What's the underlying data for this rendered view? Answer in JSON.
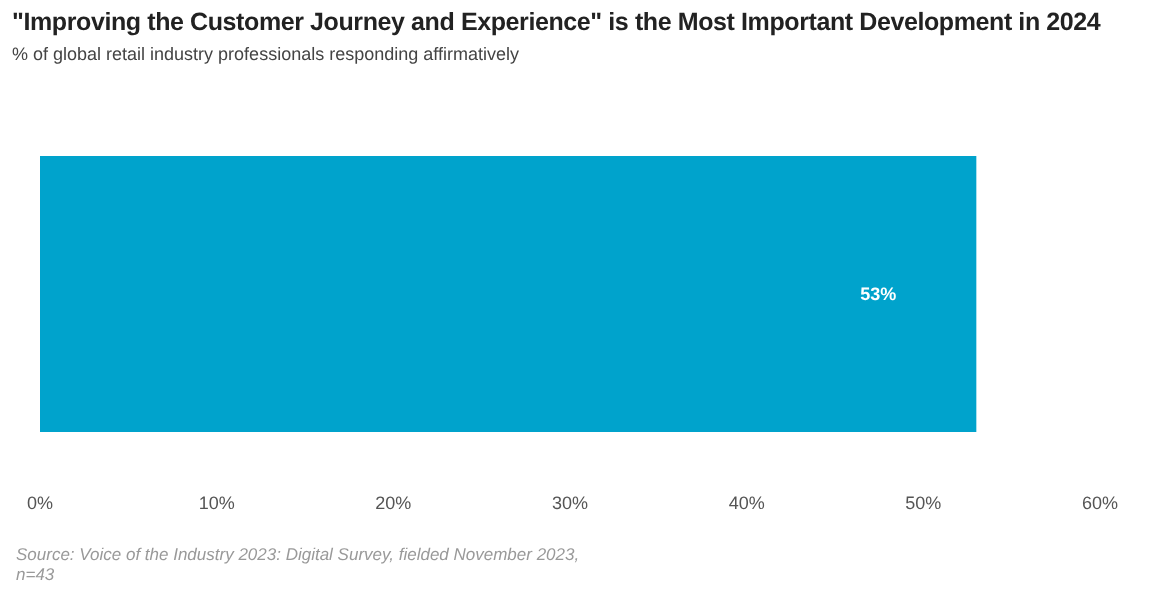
{
  "chart_data": {
    "type": "bar",
    "orientation": "horizontal",
    "title": "\"Improving the Customer Journey and Experience\" is the Most Important Development in 2024",
    "subtitle": "% of global retail industry professionals responding affirmatively",
    "categories": [
      null
    ],
    "series": [
      {
        "color": "#00a3cc",
        "values": [
          53
        ]
      }
    ],
    "value_labels": [
      "53%"
    ],
    "xlim": [
      0,
      60
    ],
    "xticks": [
      {
        "value": 0,
        "label": "0%"
      },
      {
        "value": 10,
        "label": "10%"
      },
      {
        "value": 20,
        "label": "20%"
      },
      {
        "value": 30,
        "label": "30%"
      },
      {
        "value": 40,
        "label": "40%"
      },
      {
        "value": 50,
        "label": "50%"
      },
      {
        "value": 60,
        "label": "60%"
      }
    ],
    "grid": false,
    "legend": false,
    "annotations": [
      "Source: Voice of the Industry 2023: Digital Survey, fielded November 2023, n=43"
    ]
  }
}
